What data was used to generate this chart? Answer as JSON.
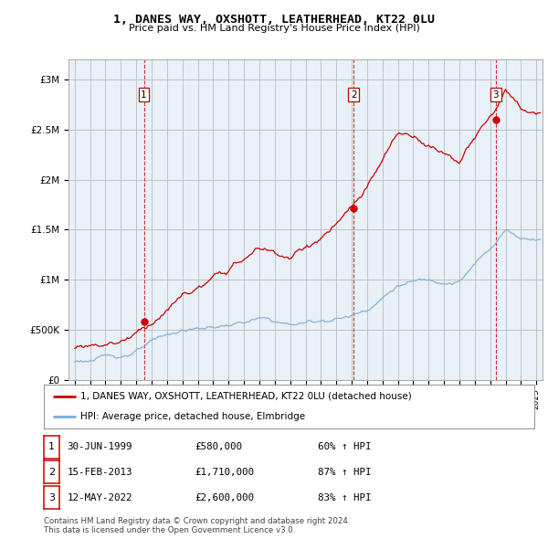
{
  "title": "1, DANES WAY, OXSHOTT, LEATHERHEAD, KT22 0LU",
  "subtitle": "Price paid vs. HM Land Registry's House Price Index (HPI)",
  "ylabel_ticks": [
    "£0",
    "£500K",
    "£1M",
    "£1.5M",
    "£2M",
    "£2.5M",
    "£3M"
  ],
  "ytick_values": [
    0,
    500000,
    1000000,
    1500000,
    2000000,
    2500000,
    3000000
  ],
  "ylim": [
    0,
    3200000
  ],
  "xlim_start": 1994.6,
  "xlim_end": 2025.4,
  "sale_color": "#cc0000",
  "hpi_color": "#7aadd4",
  "chart_bg": "#e8f0f8",
  "sale_label": "1, DANES WAY, OXSHOTT, LEATHERHEAD, KT22 0LU (detached house)",
  "hpi_label": "HPI: Average price, detached house, Elmbridge",
  "transactions": [
    {
      "date": 1999.5,
      "price": 580000,
      "label": "1"
    },
    {
      "date": 2013.12,
      "price": 1710000,
      "label": "2"
    },
    {
      "date": 2022.36,
      "price": 2600000,
      "label": "3"
    }
  ],
  "table_rows": [
    {
      "num": "1",
      "date": "30-JUN-1999",
      "price": "£580,000",
      "hpi": "60% ↑ HPI"
    },
    {
      "num": "2",
      "date": "15-FEB-2013",
      "price": "£1,710,000",
      "hpi": "87% ↑ HPI"
    },
    {
      "num": "3",
      "date": "12-MAY-2022",
      "price": "£2,600,000",
      "hpi": "83% ↑ HPI"
    }
  ],
  "footnote": "Contains HM Land Registry data © Crown copyright and database right 2024.\nThis data is licensed under the Open Government Licence v3.0.",
  "background_color": "#ffffff",
  "grid_color": "#bbbbbb",
  "vline_color": "#cc0000"
}
